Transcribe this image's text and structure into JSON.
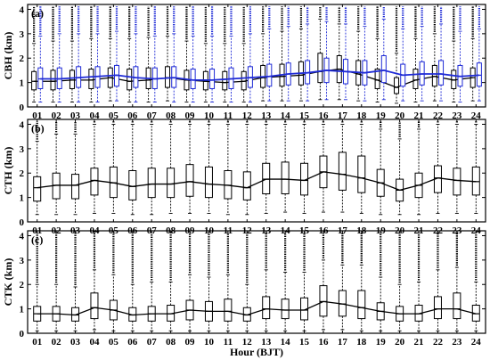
{
  "chart_data": [
    {
      "type": "box",
      "panel_label": "(a)",
      "ylabel": "CBH (km)",
      "ylim": [
        0,
        4.2
      ],
      "yticks": [
        0,
        1,
        2,
        3,
        4
      ],
      "categories": [
        "01",
        "02",
        "03",
        "04",
        "05",
        "06",
        "07",
        "08",
        "09",
        "10",
        "11",
        "12",
        "13",
        "14",
        "15",
        "16",
        "17",
        "18",
        "19",
        "20",
        "21",
        "22",
        "23",
        "24"
      ],
      "series": [
        {
          "color": "#000000",
          "medians": [
            1.05,
            1.05,
            1.1,
            1.1,
            1.2,
            1.05,
            1.1,
            1.2,
            1.1,
            1.05,
            1.0,
            1.05,
            1.2,
            1.25,
            1.3,
            1.45,
            1.55,
            1.35,
            1.1,
            0.8,
            1.1,
            1.25,
            1.1,
            1.2
          ],
          "q1": [
            0.7,
            0.7,
            0.75,
            0.75,
            0.8,
            0.7,
            0.75,
            0.8,
            0.7,
            0.7,
            0.7,
            0.7,
            0.8,
            0.85,
            0.9,
            1.0,
            1.0,
            0.9,
            0.75,
            0.55,
            0.75,
            0.85,
            0.75,
            0.8
          ],
          "q3": [
            1.45,
            1.5,
            1.5,
            1.55,
            1.6,
            1.55,
            1.6,
            1.65,
            1.5,
            1.45,
            1.45,
            1.45,
            1.7,
            1.75,
            1.85,
            2.2,
            2.1,
            1.9,
            1.55,
            1.2,
            1.55,
            1.7,
            1.5,
            1.6
          ],
          "whisker_low": [
            0.2,
            0.2,
            0.2,
            0.2,
            0.25,
            0.2,
            0.2,
            0.25,
            0.2,
            0.2,
            0.2,
            0.2,
            0.25,
            0.25,
            0.25,
            0.3,
            0.3,
            0.25,
            0.2,
            0.15,
            0.2,
            0.25,
            0.2,
            0.25
          ],
          "whisker_high": [
            2.6,
            2.7,
            2.7,
            2.8,
            2.8,
            2.8,
            2.85,
            2.9,
            2.7,
            2.6,
            2.6,
            2.6,
            3.0,
            3.1,
            3.2,
            3.6,
            3.4,
            3.1,
            2.8,
            2.2,
            2.8,
            3.0,
            2.7,
            2.8
          ]
        },
        {
          "color": "#1f2bd6",
          "medians": [
            1.15,
            1.15,
            1.2,
            1.25,
            1.3,
            1.2,
            1.15,
            1.2,
            1.1,
            1.1,
            1.15,
            1.2,
            1.25,
            1.35,
            1.4,
            1.5,
            1.45,
            1.4,
            1.5,
            1.3,
            1.35,
            1.35,
            1.25,
            1.3
          ],
          "q1": [
            0.75,
            0.75,
            0.8,
            0.8,
            0.85,
            0.8,
            0.75,
            0.8,
            0.75,
            0.75,
            0.75,
            0.8,
            0.85,
            0.9,
            0.95,
            1.0,
            0.95,
            0.9,
            1.0,
            0.85,
            0.9,
            0.9,
            0.85,
            0.85
          ],
          "q3": [
            1.6,
            1.6,
            1.65,
            1.65,
            1.7,
            1.65,
            1.6,
            1.65,
            1.55,
            1.55,
            1.6,
            1.65,
            1.75,
            1.8,
            1.9,
            2.0,
            1.95,
            1.9,
            2.1,
            1.75,
            1.85,
            1.9,
            1.7,
            1.8
          ],
          "whisker_low": [
            0.2,
            0.2,
            0.2,
            0.2,
            0.25,
            0.2,
            0.2,
            0.2,
            0.2,
            0.2,
            0.2,
            0.2,
            0.25,
            0.25,
            0.25,
            0.3,
            0.3,
            0.25,
            0.3,
            0.25,
            0.25,
            0.25,
            0.2,
            0.25
          ],
          "whisker_high": [
            2.9,
            3.0,
            3.0,
            3.0,
            3.1,
            3.0,
            2.9,
            3.0,
            2.9,
            2.9,
            2.9,
            3.0,
            3.2,
            3.3,
            3.4,
            3.5,
            3.4,
            3.3,
            3.6,
            3.2,
            3.3,
            3.4,
            3.1,
            3.2
          ]
        }
      ]
    },
    {
      "type": "box",
      "panel_label": "(b)",
      "ylabel": "CTH (km)",
      "ylim": [
        0,
        4.2
      ],
      "yticks": [
        0,
        1,
        2,
        3,
        4
      ],
      "categories": [
        "01",
        "02",
        "03",
        "04",
        "05",
        "06",
        "07",
        "08",
        "09",
        "10",
        "11",
        "12",
        "13",
        "14",
        "15",
        "16",
        "17",
        "18",
        "19",
        "20",
        "21",
        "22",
        "23",
        "24"
      ],
      "series": [
        {
          "color": "#000000",
          "medians": [
            1.4,
            1.5,
            1.5,
            1.7,
            1.6,
            1.45,
            1.55,
            1.55,
            1.65,
            1.55,
            1.5,
            1.4,
            1.75,
            1.75,
            1.7,
            2.05,
            1.95,
            1.8,
            1.6,
            1.3,
            1.5,
            1.8,
            1.7,
            1.65
          ],
          "q1": [
            0.85,
            0.95,
            0.95,
            1.1,
            1.0,
            0.9,
            1.0,
            1.0,
            1.05,
            1.0,
            0.95,
            0.9,
            1.15,
            1.15,
            1.1,
            1.4,
            1.3,
            1.2,
            1.05,
            0.85,
            1.0,
            1.2,
            1.1,
            1.1
          ],
          "q3": [
            1.85,
            2.0,
            1.95,
            2.2,
            2.25,
            2.1,
            2.2,
            2.2,
            2.35,
            2.25,
            2.1,
            2.05,
            2.4,
            2.45,
            2.4,
            2.7,
            2.85,
            2.7,
            2.15,
            1.75,
            2.0,
            2.3,
            2.2,
            2.25
          ],
          "whisker_low": [
            0.3,
            0.3,
            0.3,
            0.35,
            0.35,
            0.3,
            0.3,
            0.35,
            0.35,
            0.35,
            0.3,
            0.3,
            0.35,
            0.4,
            0.35,
            0.4,
            0.4,
            0.35,
            0.3,
            0.3,
            0.3,
            0.35,
            0.35,
            0.35
          ],
          "whisker_high": [
            3.3,
            3.6,
            3.6,
            4.0,
            4.0,
            4.0,
            4.0,
            4.0,
            4.0,
            4.0,
            4.0,
            4.0,
            4.0,
            4.0,
            4.0,
            4.0,
            4.0,
            4.0,
            3.8,
            3.4,
            3.8,
            4.0,
            4.0,
            4.0
          ]
        }
      ]
    },
    {
      "type": "box",
      "panel_label": "(c)",
      "ylabel": "CTK (km)",
      "ylim": [
        0,
        4.2
      ],
      "yticks": [
        0,
        1,
        2,
        3,
        4
      ],
      "xlabel": "Hour (BJT)",
      "categories": [
        "01",
        "02",
        "03",
        "04",
        "05",
        "06",
        "07",
        "08",
        "09",
        "10",
        "11",
        "12",
        "13",
        "14",
        "15",
        "16",
        "17",
        "18",
        "19",
        "20",
        "21",
        "22",
        "23",
        "24"
      ],
      "series": [
        {
          "color": "#000000",
          "medians": [
            0.8,
            0.8,
            0.75,
            1.05,
            0.95,
            0.75,
            0.8,
            0.8,
            0.95,
            0.9,
            0.9,
            0.75,
            1.0,
            0.95,
            0.95,
            1.3,
            1.2,
            1.05,
            0.9,
            0.8,
            0.8,
            1.0,
            1.0,
            0.8
          ],
          "q1": [
            0.5,
            0.5,
            0.5,
            0.6,
            0.55,
            0.5,
            0.5,
            0.5,
            0.55,
            0.5,
            0.5,
            0.5,
            0.6,
            0.6,
            0.55,
            0.7,
            0.7,
            0.6,
            0.55,
            0.5,
            0.5,
            0.6,
            0.6,
            0.5
          ],
          "q3": [
            1.1,
            1.1,
            1.05,
            1.65,
            1.35,
            1.05,
            1.1,
            1.15,
            1.35,
            1.3,
            1.4,
            1.05,
            1.5,
            1.4,
            1.45,
            1.95,
            1.75,
            1.75,
            1.25,
            1.1,
            1.15,
            1.5,
            1.65,
            1.15
          ],
          "whisker_low": [
            0.1,
            0.1,
            0.1,
            0.15,
            0.1,
            0.1,
            0.1,
            0.1,
            0.1,
            0.1,
            0.1,
            0.1,
            0.1,
            0.1,
            0.1,
            0.15,
            0.15,
            0.1,
            0.1,
            0.1,
            0.1,
            0.1,
            0.1,
            0.1
          ],
          "whisker_high": [
            2.0,
            2.0,
            1.9,
            2.6,
            2.4,
            2.0,
            2.1,
            2.1,
            2.4,
            2.3,
            2.4,
            2.0,
            2.6,
            2.5,
            2.5,
            3.0,
            2.8,
            2.8,
            2.3,
            2.0,
            2.1,
            2.6,
            2.7,
            2.1
          ]
        }
      ]
    }
  ]
}
